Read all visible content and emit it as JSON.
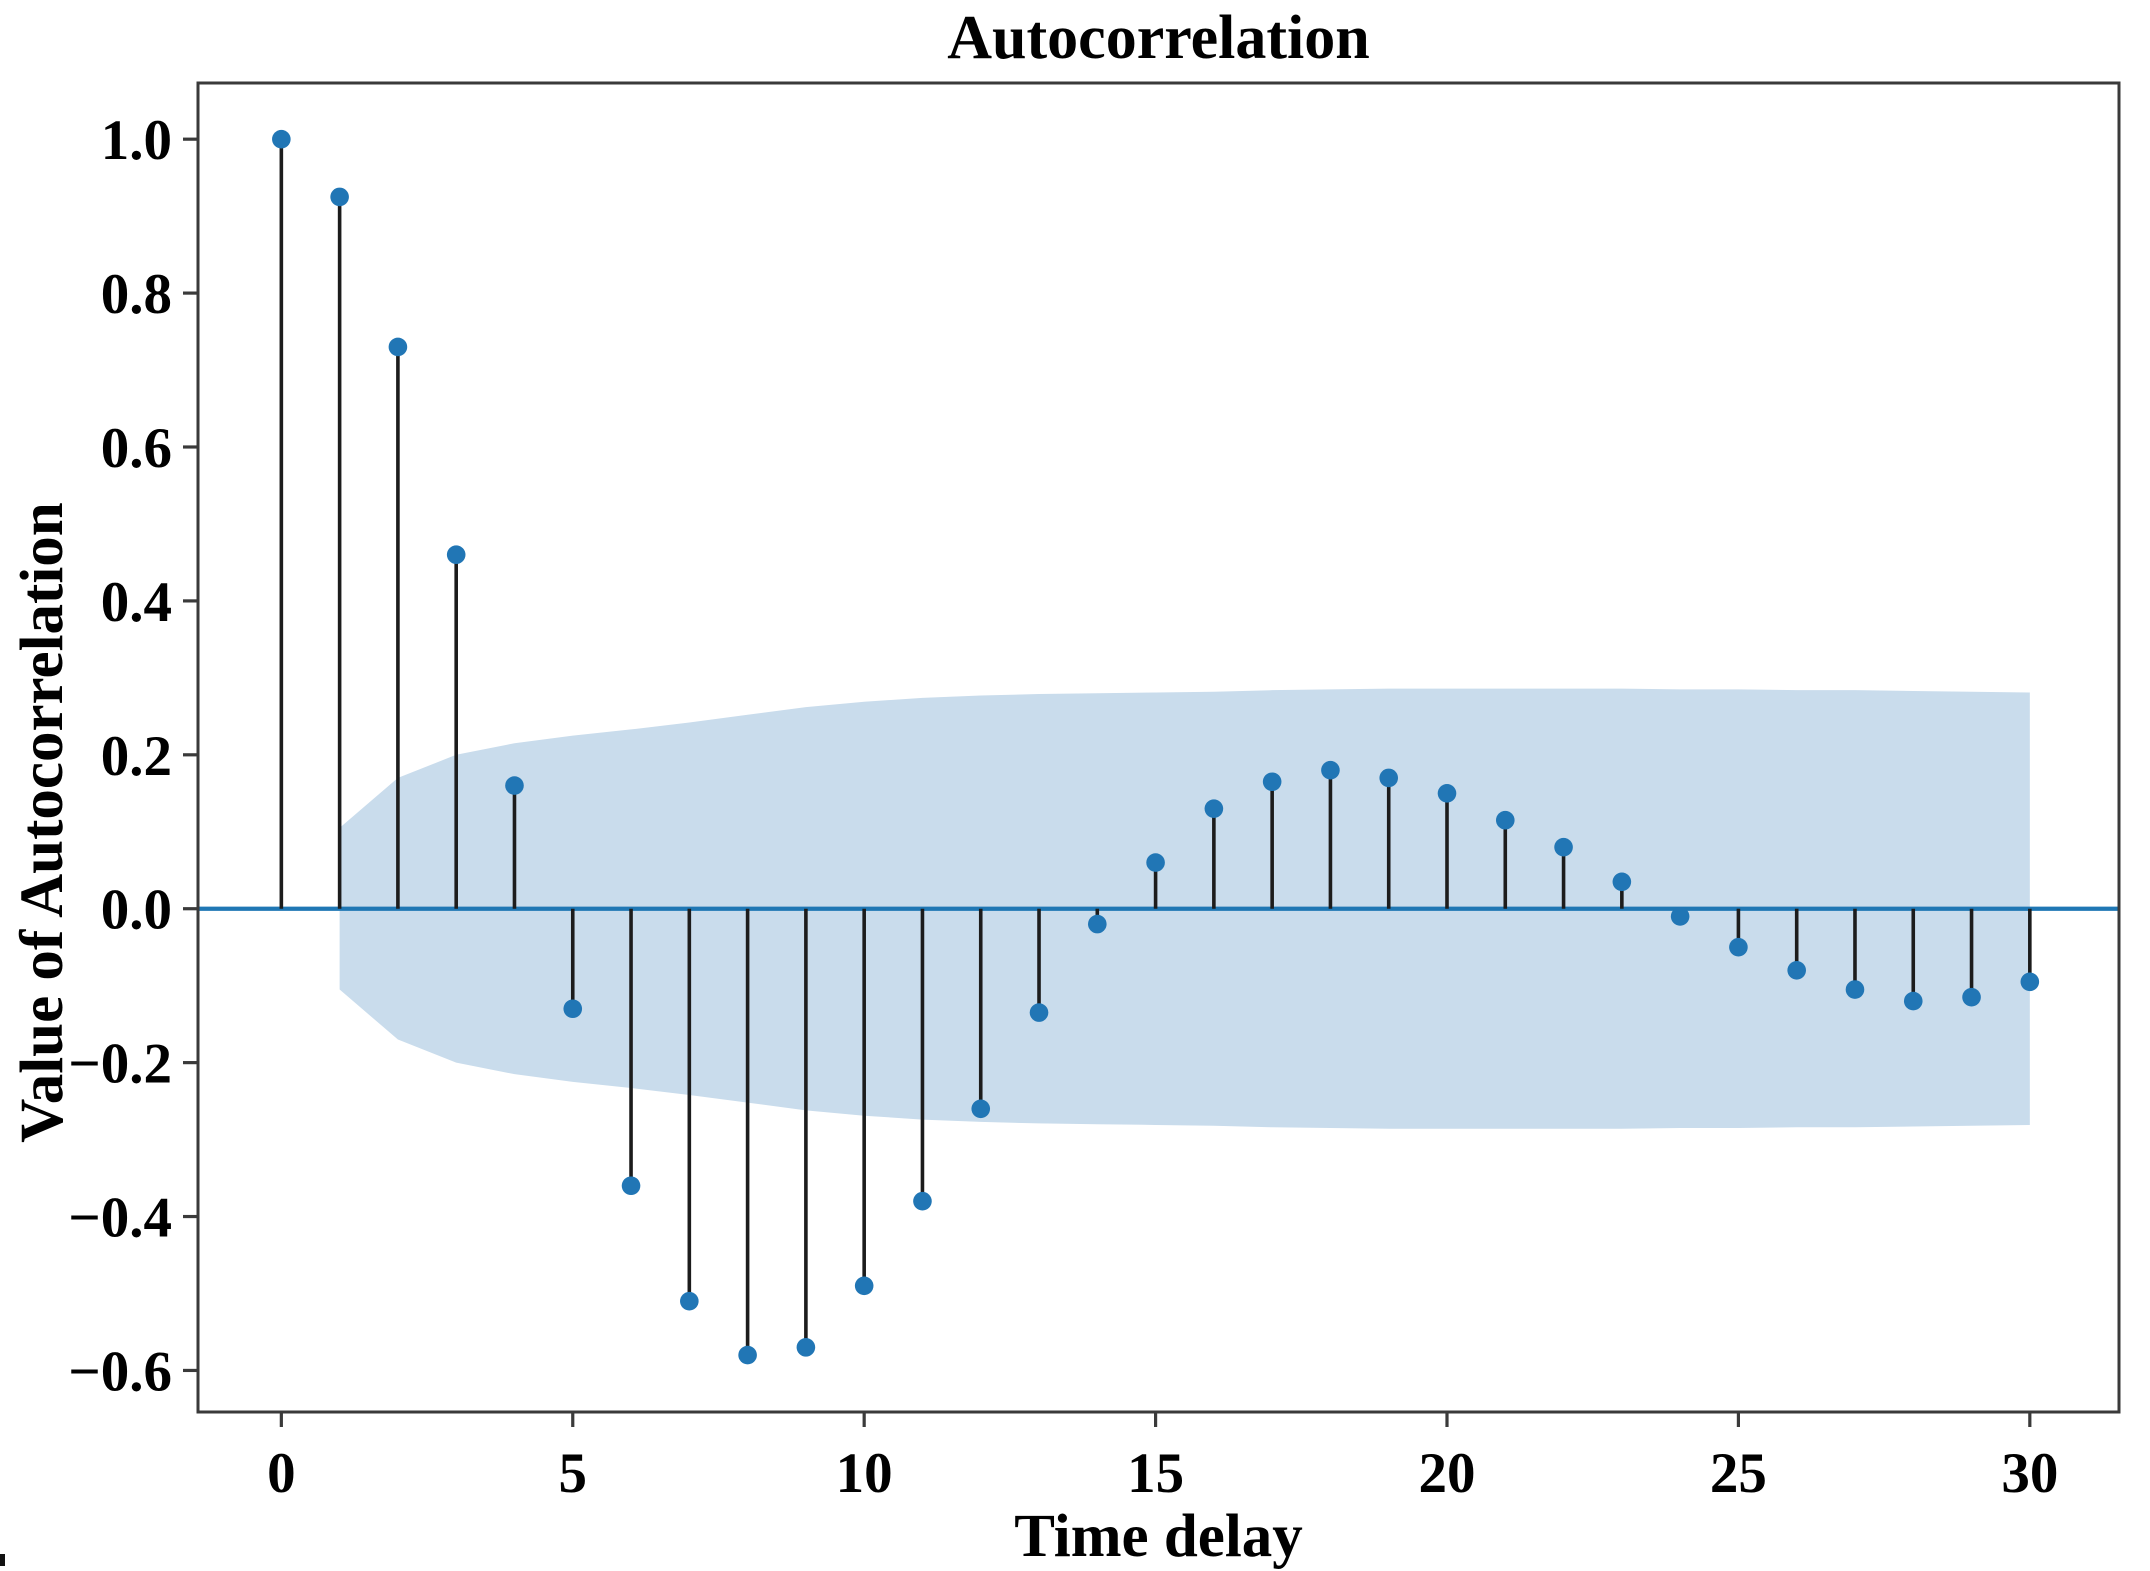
{
  "figure": {
    "background": "#ffffff"
  },
  "chart_data": {
    "type": "stem",
    "title": "Autocorrelation",
    "xlabel": "Time delay",
    "ylabel": "Value of Autocorrelation",
    "x": [
      0,
      1,
      2,
      3,
      4,
      5,
      6,
      7,
      8,
      9,
      10,
      11,
      12,
      13,
      14,
      15,
      16,
      17,
      18,
      19,
      20,
      21,
      22,
      23,
      24,
      25,
      26,
      27,
      28,
      29,
      30
    ],
    "values": [
      1.0,
      0.925,
      0.73,
      0.46,
      0.16,
      -0.13,
      -0.36,
      -0.51,
      -0.58,
      -0.57,
      -0.49,
      -0.38,
      -0.26,
      -0.135,
      -0.02,
      0.06,
      0.13,
      0.165,
      0.18,
      0.17,
      0.15,
      0.115,
      0.08,
      0.035,
      -0.01,
      -0.05,
      -0.08,
      -0.105,
      -0.12,
      -0.115,
      -0.095
    ],
    "confidence_band": {
      "x": [
        1,
        2,
        3,
        4,
        5,
        6,
        7,
        8,
        9,
        10,
        11,
        12,
        13,
        14,
        15,
        16,
        17,
        18,
        19,
        20,
        21,
        22,
        23,
        24,
        25,
        26,
        27,
        28,
        29,
        30
      ],
      "half_width": [
        0.105,
        0.17,
        0.2,
        0.215,
        0.225,
        0.233,
        0.242,
        0.252,
        0.262,
        0.269,
        0.274,
        0.277,
        0.279,
        0.28,
        0.281,
        0.282,
        0.284,
        0.285,
        0.286,
        0.286,
        0.286,
        0.286,
        0.286,
        0.285,
        0.285,
        0.284,
        0.284,
        0.283,
        0.282,
        0.281
      ],
      "description": "symmetric confidence interval band around zero"
    },
    "xticks": [
      0,
      5,
      10,
      15,
      20,
      25,
      30
    ],
    "xtick_labels": [
      "0",
      "5",
      "10",
      "15",
      "20",
      "25",
      "30"
    ],
    "yticks": [
      1.0,
      0.8,
      0.6,
      0.4,
      0.2,
      0.0,
      -0.2,
      -0.4,
      -0.6
    ],
    "ytick_labels": [
      "1.0",
      "0.8",
      "0.6",
      "0.4",
      "0.2",
      "0.0",
      "−0.2",
      "−0.4",
      "−0.6"
    ],
    "xlim": [
      -1.43,
      31.53
    ],
    "ylim": [
      -0.654,
      1.073
    ],
    "grid": false,
    "legend": null,
    "marker": "circle",
    "colors": {
      "marker": "#2176b5",
      "stem": "#1c1c1c",
      "zero_line": "#1f77b4",
      "band": "#c9dcec",
      "spine": "#3a3a3a",
      "text": "#000000"
    }
  }
}
